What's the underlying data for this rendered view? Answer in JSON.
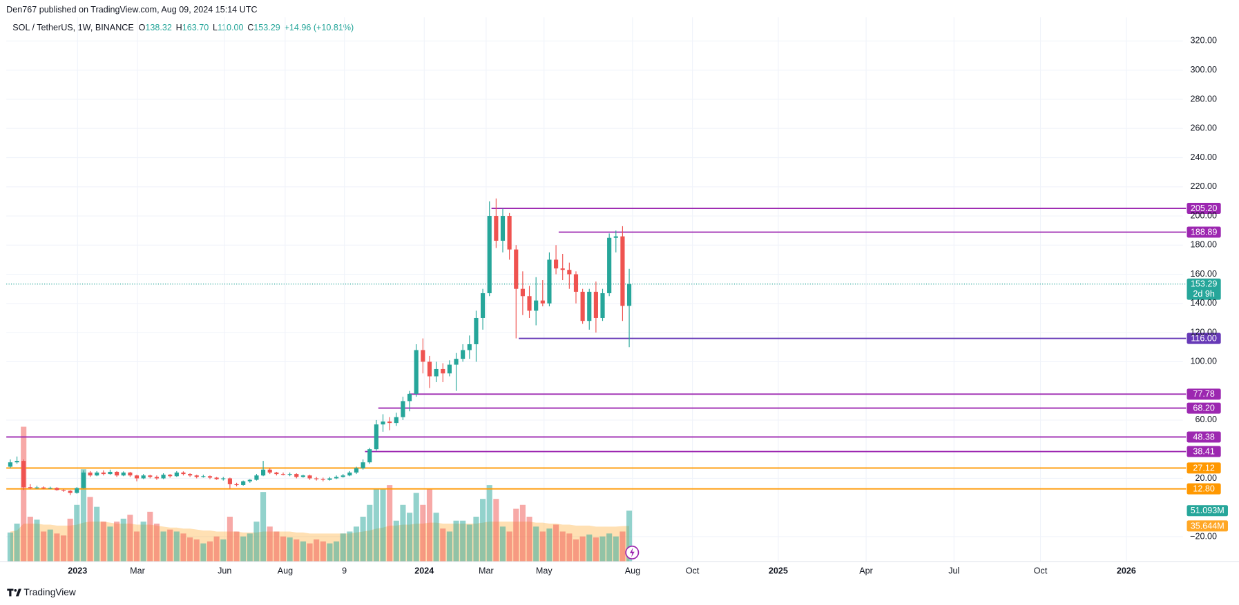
{
  "header": {
    "author_line": "Den767 published on TradingView.com, Aug 09, 2024 15:14 UTC",
    "brand": "TradingView"
  },
  "chart_data": {
    "type": "candlestick",
    "symbol": "SOL / TetherUS, 1W, BINANCE",
    "legend": [
      {
        "key": "O",
        "value": "138.32"
      },
      {
        "key": "H",
        "value": "163.70"
      },
      {
        "key": "L",
        "value": "110.00"
      },
      {
        "key": "C",
        "value": "153.29"
      }
    ],
    "change": "+14.96 (+10.81%)",
    "xlim": [
      -0.6,
      176.2
    ],
    "xticks": [
      {
        "value": 10.1,
        "label": "2023"
      },
      {
        "value": 19.1,
        "label": "Mar"
      },
      {
        "value": 32.2,
        "label": "Jun"
      },
      {
        "value": 41.3,
        "label": "Aug"
      },
      {
        "value": 50.2,
        "label": "9"
      },
      {
        "value": 62.2,
        "label": "2024"
      },
      {
        "value": 71.5,
        "label": "Mar"
      },
      {
        "value": 80.2,
        "label": "May"
      },
      {
        "value": 93.5,
        "label": "Aug"
      },
      {
        "value": 102.5,
        "label": "Oct"
      },
      {
        "value": 115.4,
        "label": "2025"
      },
      {
        "value": 128.6,
        "label": "Apr"
      },
      {
        "value": 141.8,
        "label": "Jul"
      },
      {
        "value": 154.8,
        "label": "Oct"
      },
      {
        "value": 167.7,
        "label": "2026"
      }
    ],
    "ylim": [
      -36.8,
      336.2
    ],
    "yticks": [
      {
        "value": 320,
        "label": "320.00"
      },
      {
        "value": 300,
        "label": "300.00"
      },
      {
        "value": 280,
        "label": "280.00"
      },
      {
        "value": 260,
        "label": "260.00"
      },
      {
        "value": 240,
        "label": "240.00"
      },
      {
        "value": 220,
        "label": "220.00"
      },
      {
        "value": 200,
        "label": "200.00"
      },
      {
        "value": 180,
        "label": "180.00"
      },
      {
        "value": 160,
        "label": "160.00"
      },
      {
        "value": 140,
        "label": "140.00"
      },
      {
        "value": 120,
        "label": "120.00"
      },
      {
        "value": 100,
        "label": "100.00"
      },
      {
        "value": 60,
        "label": "60.00"
      },
      {
        "value": 20,
        "label": "20.00"
      },
      {
        "value": -20,
        "label": "−20.00"
      }
    ],
    "grid": true,
    "up_color": "#26a69a",
    "down_color": "#ef5350",
    "open": [
      28,
      31,
      32,
      14,
      13.5,
      13.8,
      13.2,
      13.5,
      12,
      11.5,
      10,
      13.4,
      24,
      22,
      24,
      23,
      24.5,
      22,
      24,
      22,
      20,
      22,
      21,
      20,
      22.5,
      21.5,
      24,
      23,
      22,
      21,
      21.5,
      20.5,
      19.5,
      20,
      16,
      15.5,
      18,
      19,
      22,
      26,
      24,
      23,
      22.5,
      23,
      21,
      22,
      20,
      19.5,
      19,
      20,
      21,
      22,
      24,
      27,
      31,
      40,
      57,
      59,
      58,
      62,
      73,
      78,
      108,
      100,
      90,
      95,
      92,
      98,
      102,
      108,
      112,
      130,
      147,
      200,
      183,
      200,
      177,
      150,
      145,
      135,
      142,
      140,
      170,
      164,
      163,
      160,
      148,
      128,
      148,
      130,
      147,
      185,
      186,
      138.32
    ],
    "high": [
      33,
      35,
      33,
      16,
      15,
      14.5,
      14.3,
      14,
      12.6,
      12,
      14,
      25.5,
      25,
      25,
      25.5,
      26,
      25,
      24.8,
      24.5,
      22.5,
      23,
      22.5,
      22,
      23.5,
      23,
      25,
      24.8,
      23.5,
      22.5,
      22.5,
      22,
      21,
      21,
      20.5,
      17,
      18.5,
      19.5,
      23,
      32,
      27,
      24.5,
      24,
      24,
      23.5,
      22.5,
      22.5,
      21,
      20.5,
      21,
      22,
      23,
      25,
      28,
      33,
      41,
      60,
      64,
      62,
      65,
      76,
      80,
      112,
      116,
      104,
      100,
      99,
      101,
      106,
      112,
      118,
      135,
      150,
      210,
      212,
      205,
      202,
      180,
      162,
      152,
      158,
      156,
      175,
      180,
      174,
      168,
      162,
      150,
      150,
      155,
      150,
      188,
      190,
      193,
      163.7
    ],
    "low": [
      27,
      30,
      12,
      12.5,
      12.8,
      12.5,
      12.6,
      11.5,
      10.8,
      8.5,
      9.5,
      13,
      21,
      21.5,
      22,
      22.5,
      21,
      21.5,
      21,
      18,
      19.5,
      20,
      19,
      19.5,
      20.5,
      21,
      22,
      21,
      20,
      20.5,
      19.5,
      19,
      18.5,
      13,
      14.5,
      15,
      17,
      18.5,
      21.5,
      23,
      22,
      22,
      21.5,
      20,
      20.5,
      19,
      18.5,
      18,
      18.5,
      19.5,
      20.5,
      21.5,
      23,
      26,
      30,
      39,
      52,
      53,
      56,
      60,
      66,
      76,
      92,
      82,
      86,
      86,
      90,
      80,
      100,
      102,
      100,
      122,
      145,
      178,
      175,
      170,
      116,
      132,
      130,
      125,
      138,
      138,
      160,
      156,
      150,
      140,
      126,
      122,
      120,
      128,
      145,
      175,
      128,
      110.0
    ],
    "close": [
      31,
      32,
      14,
      13.5,
      13.8,
      13.2,
      13.5,
      12,
      11.5,
      10,
      13.4,
      24,
      22,
      24,
      23,
      24.5,
      22,
      24,
      22,
      20,
      22,
      21,
      20,
      22.5,
      21.5,
      24,
      23,
      22,
      21,
      21.5,
      20.5,
      19.5,
      20,
      16,
      15.5,
      18,
      19,
      22,
      26,
      24,
      23,
      22.5,
      23,
      21,
      22,
      20,
      19.5,
      19,
      20,
      21,
      22,
      24,
      27,
      31,
      40,
      57,
      59,
      58,
      62,
      73,
      78,
      108,
      100,
      90,
      95,
      92,
      98,
      102,
      108,
      112,
      130,
      147,
      200,
      183,
      200,
      177,
      150,
      145,
      135,
      142,
      140,
      170,
      164,
      163,
      160,
      148,
      128,
      148,
      130,
      147,
      185,
      186,
      138.32,
      153.29
    ],
    "volume": {
      "ylim": [
        0,
        550
      ],
      "values": [
        29,
        38,
        136,
        45,
        42,
        30,
        32,
        28,
        26,
        43,
        57,
        93,
        65,
        55,
        40,
        35,
        40,
        43,
        47,
        30,
        40,
        50,
        38,
        30,
        32,
        30,
        28,
        24,
        22,
        18,
        20,
        25,
        22,
        45,
        30,
        25,
        28,
        40,
        70,
        35,
        30,
        25,
        24,
        22,
        20,
        18,
        22,
        20,
        18,
        20,
        28,
        30,
        35,
        45,
        57,
        73,
        73,
        77,
        41,
        57,
        49,
        69,
        57,
        73,
        49,
        33,
        30,
        41,
        41,
        37,
        45,
        63,
        77,
        63,
        35,
        30,
        53,
        57,
        45,
        35,
        30,
        33,
        37,
        30,
        28,
        22,
        25,
        27,
        24,
        25,
        28,
        25,
        30,
        51.093
      ],
      "last_label": "51.093M",
      "up_color": "rgba(38,166,154,0.5)",
      "down_color": "rgba(239,83,80,0.5)",
      "ma": [
        30,
        31,
        38,
        38,
        38,
        37,
        37,
        36,
        36,
        36,
        37,
        39,
        40,
        40,
        40,
        39,
        38,
        38,
        38,
        37,
        37,
        37,
        36,
        35,
        34,
        34,
        33,
        33,
        32,
        31,
        31,
        30,
        30,
        30,
        30,
        29,
        29,
        29,
        30,
        30,
        30,
        30,
        30,
        29,
        29,
        28,
        28,
        28,
        28,
        28,
        28,
        28,
        29,
        30,
        31,
        33,
        34,
        36,
        36,
        37,
        37,
        38,
        38,
        39,
        39,
        38,
        38,
        38,
        38,
        38,
        38,
        39,
        40,
        40,
        40,
        40,
        40,
        40,
        40,
        39,
        39,
        38,
        38,
        37,
        37,
        36,
        36,
        36,
        35,
        35,
        35,
        35,
        35.5,
        35.644
      ],
      "ma_last_label": "35.644M",
      "ma_color": "#ffa726"
    },
    "levels": [
      {
        "value": 205.2,
        "label": "205.20",
        "color": "#9c27b0",
        "start": 72.3
      },
      {
        "value": 188.89,
        "label": "188.89",
        "color": "#9c27b0",
        "start": 82.4
      },
      {
        "value": 116,
        "label": "116.00",
        "color": "#673ab7",
        "start": 76.4
      },
      {
        "value": 77.78,
        "label": "77.78",
        "color": "#9c27b0",
        "start": 59.9
      },
      {
        "value": 68.2,
        "label": "68.20",
        "color": "#9c27b0",
        "start": 55.3
      },
      {
        "value": 48.38,
        "label": "48.38",
        "color": "#9c27b0",
        "start": -0.6
      },
      {
        "value": 38.41,
        "label": "38.41",
        "color": "#9c27b0",
        "start": 53.3
      },
      {
        "value": 27.12,
        "label": "27.12",
        "color": "#ff9800",
        "start": -0.6
      },
      {
        "value": 12.8,
        "label": "12.80",
        "color": "#ff9800",
        "start": -0.6
      }
    ],
    "last_price": {
      "value": 153.29,
      "label": "153.29",
      "countdown": "2d 9h",
      "color": "#26a69a"
    }
  }
}
